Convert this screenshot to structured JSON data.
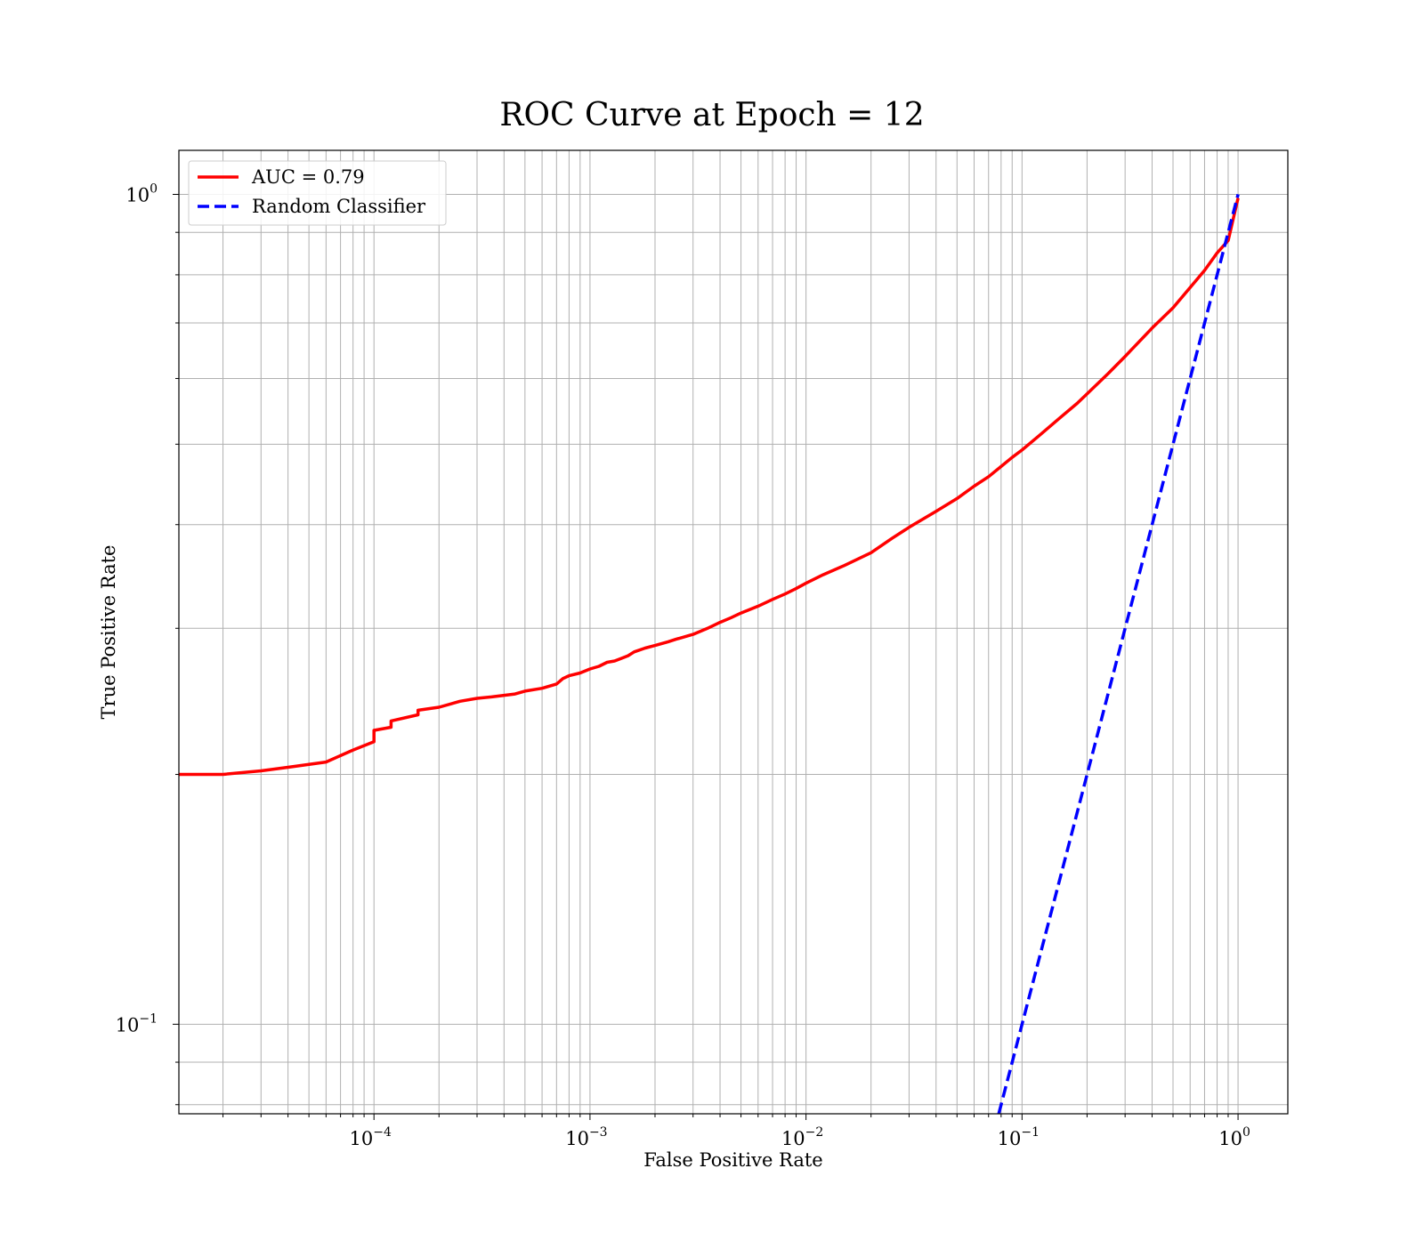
{
  "chart_data": {
    "type": "line",
    "title": "ROC Curve at Epoch = 12",
    "xlabel": "False Positive Rate",
    "ylabel": "True Positive Rate",
    "xscale": "log",
    "yscale": "log",
    "xlim": [
      1.25e-05,
      1.7
    ],
    "ylim": [
      0.078,
      1.13
    ],
    "grid": "on (major and minor)",
    "legend_position": "upper-left",
    "x_ticks": [
      {
        "value": 0.0001,
        "base": "10",
        "exp": "−4"
      },
      {
        "value": 0.001,
        "base": "10",
        "exp": "−3"
      },
      {
        "value": 0.01,
        "base": "10",
        "exp": "−2"
      },
      {
        "value": 0.1,
        "base": "10",
        "exp": "−1"
      },
      {
        "value": 1,
        "base": "10",
        "exp": "0"
      }
    ],
    "y_ticks": [
      {
        "value": 0.1,
        "base": "10",
        "exp": "−1"
      },
      {
        "value": 1,
        "base": "10",
        "exp": "0"
      }
    ],
    "series": [
      {
        "name": "AUC = 0.79",
        "color": "#ff0000",
        "style": "solid",
        "x": [
          1.25e-05,
          2e-05,
          3e-05,
          4e-05,
          6e-05,
          8e-05,
          0.0001,
          0.0001,
          0.00012,
          0.00012,
          0.00016,
          0.00016,
          0.0002,
          0.00025,
          0.0003,
          0.00035,
          0.00045,
          0.0005,
          0.0006,
          0.0007,
          0.00075,
          0.0008,
          0.0009,
          0.001,
          0.0011,
          0.0012,
          0.0013,
          0.0014,
          0.0015,
          0.0016,
          0.0018,
          0.002,
          0.0023,
          0.0025,
          0.003,
          0.0035,
          0.004,
          0.0045,
          0.005,
          0.006,
          0.007,
          0.008,
          0.009,
          0.01,
          0.012,
          0.015,
          0.02,
          0.025,
          0.03,
          0.04,
          0.05,
          0.06,
          0.07,
          0.08,
          0.09,
          0.1,
          0.12,
          0.15,
          0.18,
          0.2,
          0.25,
          0.3,
          0.4,
          0.5,
          0.6,
          0.7,
          0.8,
          0.9,
          1.0
        ],
        "y": [
          0.2,
          0.2,
          0.202,
          0.204,
          0.207,
          0.214,
          0.219,
          0.226,
          0.228,
          0.232,
          0.236,
          0.239,
          0.241,
          0.245,
          0.247,
          0.248,
          0.25,
          0.252,
          0.254,
          0.257,
          0.261,
          0.263,
          0.265,
          0.268,
          0.27,
          0.273,
          0.274,
          0.276,
          0.278,
          0.281,
          0.284,
          0.286,
          0.289,
          0.291,
          0.295,
          0.3,
          0.305,
          0.309,
          0.313,
          0.319,
          0.325,
          0.33,
          0.335,
          0.34,
          0.348,
          0.357,
          0.37,
          0.385,
          0.397,
          0.415,
          0.43,
          0.445,
          0.457,
          0.47,
          0.482,
          0.492,
          0.512,
          0.538,
          0.56,
          0.575,
          0.608,
          0.638,
          0.69,
          0.73,
          0.772,
          0.81,
          0.85,
          0.88,
          0.99
        ]
      },
      {
        "name": "Random Classifier",
        "color": "#0000ff",
        "style": "dashed",
        "x": [
          0.078,
          1.0
        ],
        "y": [
          0.078,
          1.0
        ]
      }
    ]
  }
}
